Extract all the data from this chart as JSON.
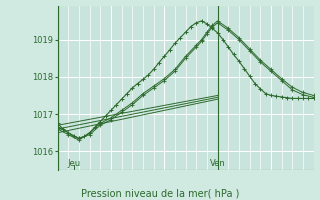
{
  "title": "Pression niveau de la mer( hPa )",
  "bg_color": "#d0eae2",
  "plot_bg_color": "#c8e4dc",
  "grid_color": "#ffffff",
  "line_color": "#2d6a2d",
  "ylabel_ticks": [
    1016,
    1017,
    1018,
    1019
  ],
  "xlim": [
    0,
    48
  ],
  "ylim": [
    1015.5,
    1019.9
  ],
  "jeu_x": 3,
  "ven_x": 30,
  "series_main": {
    "x": [
      0,
      1,
      2,
      3,
      4,
      5,
      6,
      7,
      8,
      9,
      10,
      11,
      12,
      13,
      14,
      15,
      16,
      17,
      18,
      19,
      20,
      21,
      22,
      23,
      24,
      25,
      26,
      27,
      28,
      29,
      30,
      31,
      32,
      33,
      34,
      35,
      36,
      37,
      38,
      39,
      40,
      41,
      42,
      43,
      44,
      45,
      46,
      47,
      48
    ],
    "y": [
      1016.75,
      1016.6,
      1016.5,
      1016.4,
      1016.35,
      1016.4,
      1016.5,
      1016.65,
      1016.8,
      1016.95,
      1017.1,
      1017.25,
      1017.4,
      1017.55,
      1017.7,
      1017.82,
      1017.93,
      1018.05,
      1018.2,
      1018.38,
      1018.55,
      1018.72,
      1018.9,
      1019.05,
      1019.2,
      1019.35,
      1019.45,
      1019.5,
      1019.42,
      1019.3,
      1019.18,
      1019.0,
      1018.8,
      1018.6,
      1018.42,
      1018.22,
      1018.02,
      1017.82,
      1017.68,
      1017.55,
      1017.5,
      1017.48,
      1017.46,
      1017.44,
      1017.42,
      1017.42,
      1017.42,
      1017.42,
      1017.42
    ]
  },
  "series_a": {
    "x": [
      0,
      2,
      4,
      6,
      8,
      10,
      12,
      14,
      16,
      18,
      20,
      22,
      24,
      26,
      27,
      28,
      29,
      30,
      32,
      34,
      36,
      38,
      40,
      42,
      44,
      46,
      48
    ],
    "y": [
      1016.6,
      1016.45,
      1016.3,
      1016.5,
      1016.75,
      1016.9,
      1017.1,
      1017.3,
      1017.55,
      1017.75,
      1017.95,
      1018.2,
      1018.55,
      1018.85,
      1019.0,
      1019.2,
      1019.38,
      1019.5,
      1019.3,
      1019.05,
      1018.75,
      1018.45,
      1018.2,
      1017.95,
      1017.72,
      1017.58,
      1017.5
    ]
  },
  "series_b": {
    "x": [
      0,
      2,
      4,
      6,
      8,
      10,
      12,
      14,
      16,
      18,
      20,
      22,
      24,
      26,
      27,
      28,
      29,
      30,
      32,
      34,
      36,
      38,
      40,
      42,
      44,
      46,
      48
    ],
    "y": [
      1016.65,
      1016.5,
      1016.35,
      1016.45,
      1016.7,
      1016.85,
      1017.05,
      1017.25,
      1017.5,
      1017.7,
      1017.9,
      1018.15,
      1018.5,
      1018.8,
      1018.95,
      1019.15,
      1019.33,
      1019.45,
      1019.25,
      1019.0,
      1018.7,
      1018.4,
      1018.15,
      1017.9,
      1017.65,
      1017.52,
      1017.45
    ]
  },
  "straight_lines": [
    {
      "x": [
        0,
        30
      ],
      "y": [
        1016.7,
        1017.5
      ]
    },
    {
      "x": [
        0,
        30
      ],
      "y": [
        1016.6,
        1017.45
      ]
    },
    {
      "x": [
        0,
        30
      ],
      "y": [
        1016.5,
        1017.4
      ]
    }
  ]
}
